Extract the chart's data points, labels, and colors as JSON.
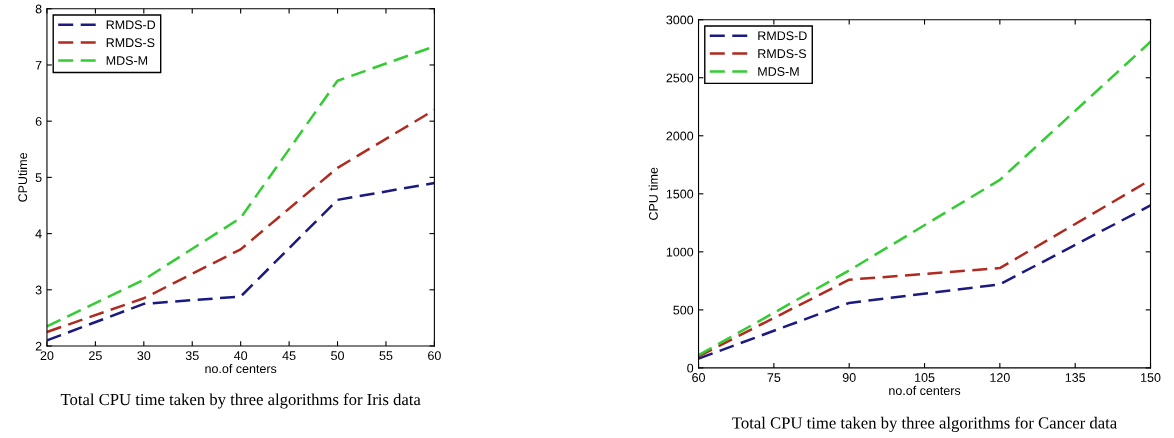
{
  "chart_data": [
    {
      "type": "line",
      "xlabel": "no.of centers",
      "ylabel": "CPUtime",
      "annotations": [
        "Total CPU time taken by three algorithms for Iris data"
      ],
      "x": [
        20,
        30,
        40,
        50,
        60
      ],
      "xlim": [
        20,
        60
      ],
      "xticks": [
        20,
        25,
        30,
        35,
        40,
        45,
        50,
        55,
        60
      ],
      "ylim": [
        2,
        8
      ],
      "yticks": [
        2,
        3,
        4,
        5,
        6,
        7,
        8
      ],
      "line_style": "dashed",
      "legend": "top left",
      "grid": false,
      "series": [
        {
          "name": "RMDS-D",
          "color": "#1a1a80",
          "values": [
            2.1,
            2.75,
            2.88,
            4.6,
            4.9
          ]
        },
        {
          "name": "RMDS-S",
          "color": "#b02a20",
          "values": [
            2.25,
            2.85,
            3.72,
            5.17,
            6.2
          ]
        },
        {
          "name": "MDS-M",
          "color": "#33cc33",
          "values": [
            2.35,
            3.18,
            4.28,
            6.72,
            7.33
          ]
        }
      ]
    },
    {
      "type": "line",
      "xlabel": "no.of centers",
      "ylabel": "CPU time",
      "annotations": [
        "Total CPU time taken by three algorithms for Cancer data"
      ],
      "x": [
        60,
        90,
        120,
        150
      ],
      "xlim": [
        60,
        150
      ],
      "xticks": [
        60,
        75,
        90,
        105,
        120,
        135,
        150
      ],
      "ylim": [
        0,
        3000
      ],
      "yticks": [
        0,
        500,
        1000,
        1500,
        2000,
        2500,
        3000
      ],
      "line_style": "dashed",
      "legend": "top left",
      "grid": false,
      "series": [
        {
          "name": "RMDS-D",
          "color": "#1a1a80",
          "values": [
            80,
            560,
            720,
            1400
          ]
        },
        {
          "name": "RMDS-S",
          "color": "#b02a20",
          "values": [
            100,
            760,
            860,
            1620
          ]
        },
        {
          "name": "MDS-M",
          "color": "#33cc33",
          "values": [
            110,
            840,
            1620,
            2810
          ]
        }
      ]
    }
  ]
}
